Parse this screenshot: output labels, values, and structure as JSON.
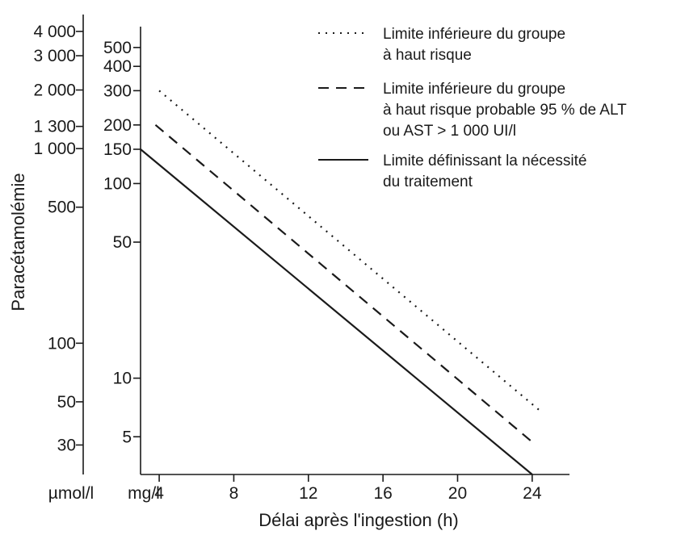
{
  "chart_data": {
    "type": "line",
    "xlabel": "Délai après l'ingestion (h)",
    "ylabel": "Paracétamolémie",
    "x_unit_label_left": "µmol/l",
    "x_unit_label_right": "mg/l",
    "x_ticks": [
      4,
      8,
      12,
      16,
      20,
      24
    ],
    "xlim": [
      3,
      26
    ],
    "y_scale": "log",
    "ylim_mg": [
      3.2,
      640
    ],
    "y_ticks_umol": [
      {
        "value": 4000,
        "label": "4 000"
      },
      {
        "value": 3000,
        "label": "3 000"
      },
      {
        "value": 2000,
        "label": "2 000"
      },
      {
        "value": 1300,
        "label": "1 300"
      },
      {
        "value": 1000,
        "label": "1 000"
      },
      {
        "value": 500,
        "label": "500"
      },
      {
        "value": 100,
        "label": "100"
      },
      {
        "value": 50,
        "label": "50"
      },
      {
        "value": 30,
        "label": "30"
      }
    ],
    "y_ticks_mg": [
      {
        "value": 500,
        "label": "500"
      },
      {
        "value": 400,
        "label": "400"
      },
      {
        "value": 300,
        "label": "300"
      },
      {
        "value": 200,
        "label": "200"
      },
      {
        "value": 150,
        "label": "150"
      },
      {
        "value": 100,
        "label": "100"
      },
      {
        "value": 50,
        "label": "50"
      },
      {
        "value": 10,
        "label": "10"
      },
      {
        "value": 5,
        "label": "5"
      }
    ],
    "series": [
      {
        "name": "Limite inférieure du groupe à haut risque",
        "style": "dotted",
        "x": [
          4,
          24.5
        ],
        "y": [
          300,
          6.7
        ]
      },
      {
        "name": "Limite inférieure du groupe à haut risque probable 95 % de ALT ou AST > 1 000 UI/l",
        "style": "dashed",
        "x": [
          3.8,
          24
        ],
        "y": [
          200,
          4.7
        ]
      },
      {
        "name": "Limite définissant la nécessité du traitement",
        "style": "solid",
        "x": [
          3,
          24
        ],
        "y": [
          150,
          3.2
        ]
      }
    ],
    "legend": {
      "placement": "top-right",
      "entries": [
        {
          "lines": [
            "Limite inférieure du groupe",
            "à haut risque"
          ]
        },
        {
          "lines": [
            "Limite inférieure du groupe",
            "à haut risque probable 95 % de ALT",
            "ou AST > 1 000 UI/l"
          ]
        },
        {
          "lines": [
            "Limite définissant la nécessité",
            "du traitement"
          ]
        }
      ]
    },
    "line_color": "#1a1a1a"
  }
}
